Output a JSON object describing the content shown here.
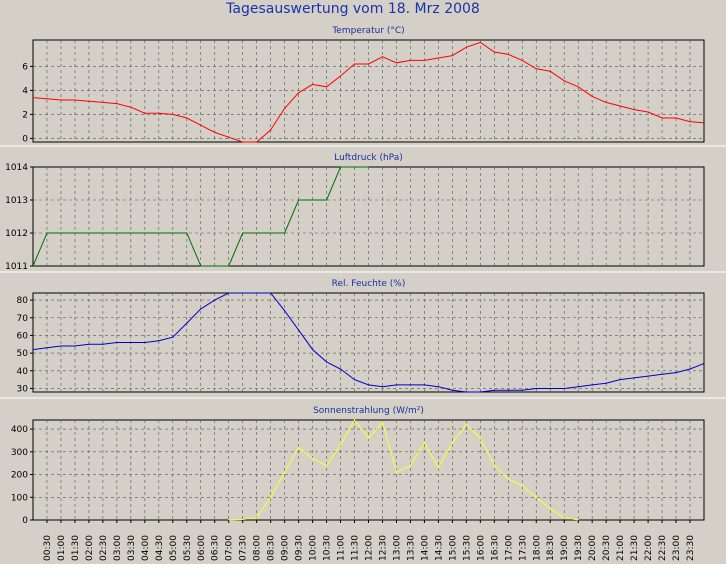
{
  "chart_data": {
    "title": "Tagesauswertung vom 18. Mrz 2008",
    "x_ticks": [
      "00:30",
      "01:00",
      "01:30",
      "02:00",
      "02:30",
      "03:00",
      "03:30",
      "04:00",
      "04:30",
      "05:00",
      "05:30",
      "06:00",
      "06:30",
      "07:00",
      "07:30",
      "08:00",
      "08:30",
      "09:00",
      "09:30",
      "10:00",
      "10:30",
      "11:00",
      "11:30",
      "12:00",
      "12:30",
      "13:00",
      "13:30",
      "14:00",
      "14:30",
      "15:00",
      "15:30",
      "16:00",
      "16:30",
      "17:00",
      "17:30",
      "18:00",
      "18:30",
      "19:00",
      "19:30",
      "20:00",
      "20:30",
      "21:00",
      "21:30",
      "22:00",
      "22:30",
      "23:00",
      "23:30"
    ],
    "panels": [
      {
        "type": "line",
        "title": "Temperatur (°C)",
        "color": "#ff0000",
        "ylim": [
          -0.3,
          8.2
        ],
        "yticks": [
          0,
          2,
          4,
          6
        ],
        "x": [
          "00:00",
          "00:30",
          "01:00",
          "01:30",
          "02:00",
          "02:30",
          "03:00",
          "03:30",
          "04:00",
          "04:30",
          "05:00",
          "05:30",
          "06:00",
          "06:30",
          "07:00",
          "07:30",
          "08:00",
          "08:30",
          "09:00",
          "09:30",
          "10:00",
          "10:30",
          "11:00",
          "11:30",
          "12:00",
          "12:30",
          "13:00",
          "13:30",
          "14:00",
          "14:30",
          "15:00",
          "15:30",
          "16:00",
          "16:30",
          "17:00",
          "17:30",
          "18:00",
          "18:30",
          "19:00",
          "19:30",
          "20:00",
          "20:30",
          "21:00",
          "21:30",
          "22:00",
          "22:30",
          "23:00",
          "23:30",
          "23:59"
        ],
        "values": [
          3.4,
          3.3,
          3.2,
          3.2,
          3.1,
          3.0,
          2.9,
          2.6,
          2.1,
          2.1,
          2.0,
          1.7,
          1.1,
          0.5,
          0.1,
          -0.3,
          -0.3,
          0.7,
          2.5,
          3.8,
          4.5,
          4.3,
          5.2,
          6.2,
          6.2,
          6.8,
          6.3,
          6.5,
          6.5,
          6.7,
          6.9,
          7.6,
          8.0,
          7.2,
          7.0,
          6.5,
          5.8,
          5.6,
          4.8,
          4.3,
          3.5,
          3.0,
          2.7,
          2.4,
          2.2,
          1.7,
          1.7,
          1.4,
          1.3
        ]
      },
      {
        "type": "line",
        "title": "Luftdruck (hPa)",
        "color": "#007000",
        "ylim": [
          1011,
          1014
        ],
        "yticks": [
          1011,
          1012,
          1013,
          1014
        ],
        "x": [
          "00:00",
          "00:30",
          "01:00",
          "01:30",
          "02:00",
          "02:30",
          "03:00",
          "03:30",
          "04:00",
          "04:30",
          "05:00",
          "05:30",
          "06:00",
          "06:30",
          "07:00",
          "07:30",
          "08:00",
          "08:30",
          "09:00",
          "09:30",
          "10:00",
          "10:30",
          "11:00",
          "11:30",
          "12:00"
        ],
        "values": [
          1011,
          1012,
          1012,
          1012,
          1012,
          1012,
          1012,
          1012,
          1012,
          1012,
          1012,
          1012,
          1011,
          1011,
          1011,
          1012,
          1012,
          1012,
          1012,
          1013,
          1013,
          1013,
          1014,
          1014,
          1014
        ]
      },
      {
        "type": "line",
        "title": "Rel. Feuchte (%)",
        "color": "#0000cc",
        "ylim": [
          28,
          84
        ],
        "yticks": [
          30,
          40,
          50,
          60,
          70,
          80
        ],
        "x": [
          "00:00",
          "00:30",
          "01:00",
          "01:30",
          "02:00",
          "02:30",
          "03:00",
          "03:30",
          "04:00",
          "04:30",
          "05:00",
          "05:30",
          "06:00",
          "06:30",
          "07:00",
          "07:30",
          "08:00",
          "08:30",
          "09:00",
          "09:30",
          "10:00",
          "10:30",
          "11:00",
          "11:30",
          "12:00",
          "12:30",
          "13:00",
          "13:30",
          "14:00",
          "14:30",
          "15:00",
          "15:30",
          "16:00",
          "16:30",
          "17:00",
          "17:30",
          "18:00",
          "18:30",
          "19:00",
          "19:30",
          "20:00",
          "20:30",
          "21:00",
          "21:30",
          "22:00",
          "22:30",
          "23:00",
          "23:30",
          "23:59"
        ],
        "values": [
          52,
          53,
          54,
          54,
          55,
          55,
          56,
          56,
          56,
          57,
          59,
          67,
          75,
          80,
          84,
          84,
          84,
          84,
          74,
          63,
          52,
          45,
          41,
          35,
          32,
          31,
          32,
          32,
          32,
          31,
          29,
          28,
          28,
          29,
          29,
          29,
          30,
          30,
          30,
          31,
          32,
          33,
          35,
          36,
          37,
          38,
          39,
          41,
          44
        ]
      },
      {
        "type": "line",
        "title": "Sonnenstrahlung (W/m²)",
        "color": "#ffff33",
        "ylim": [
          0,
          440
        ],
        "yticks": [
          0,
          100,
          200,
          300,
          400
        ],
        "x": [
          "07:00",
          "07:30",
          "08:00",
          "08:30",
          "09:00",
          "09:30",
          "10:00",
          "10:30",
          "11:00",
          "11:30",
          "12:00",
          "12:30",
          "13:00",
          "13:30",
          "14:00",
          "14:30",
          "15:00",
          "15:30",
          "16:00",
          "16:30",
          "17:00",
          "17:30",
          "18:00",
          "18:30",
          "19:00",
          "19:30"
        ],
        "values": [
          0,
          2,
          10,
          100,
          210,
          320,
          270,
          240,
          330,
          440,
          360,
          430,
          210,
          240,
          340,
          230,
          340,
          420,
          360,
          240,
          180,
          150,
          100,
          50,
          10,
          0
        ]
      }
    ]
  }
}
